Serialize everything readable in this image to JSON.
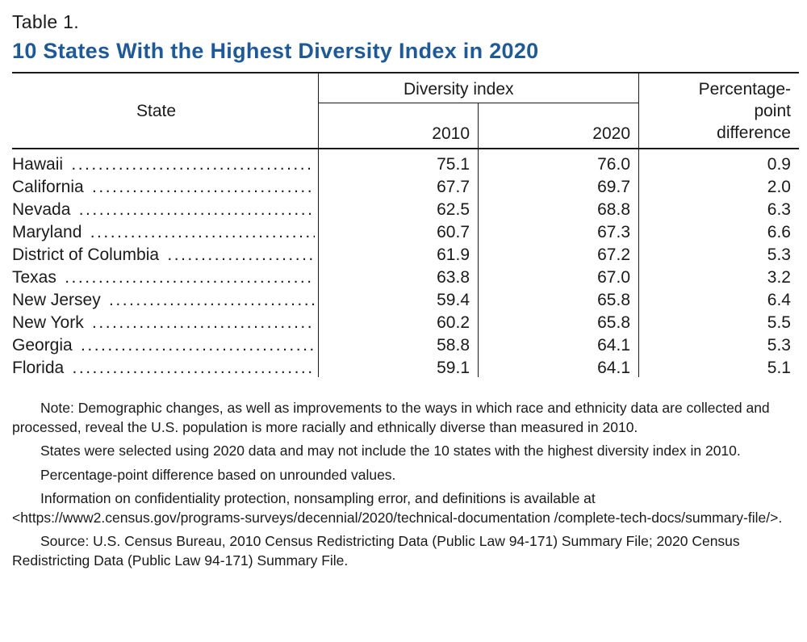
{
  "table": {
    "label": "Table 1.",
    "title": "10 States With the Highest Diversity Index in 2020",
    "headers": {
      "state": "State",
      "diversity_index": "Diversity index",
      "year_2010": "2010",
      "year_2020": "2020",
      "pct_line1": "Percentage-",
      "pct_line2": "point",
      "pct_line3": "difference"
    },
    "rows": [
      {
        "state": "Hawaii",
        "v2010": "75.1",
        "v2020": "76.0",
        "diff": "0.9"
      },
      {
        "state": "California",
        "v2010": "67.7",
        "v2020": "69.7",
        "diff": "2.0"
      },
      {
        "state": "Nevada",
        "v2010": "62.5",
        "v2020": "68.8",
        "diff": "6.3"
      },
      {
        "state": "Maryland",
        "v2010": "60.7",
        "v2020": "67.3",
        "diff": "6.6"
      },
      {
        "state": "District of Columbia",
        "v2010": "61.9",
        "v2020": "67.2",
        "diff": "5.3"
      },
      {
        "state": "Texas",
        "v2010": "63.8",
        "v2020": "67.0",
        "diff": "3.2"
      },
      {
        "state": "New Jersey",
        "v2010": "59.4",
        "v2020": "65.8",
        "diff": "6.4"
      },
      {
        "state": "New York",
        "v2010": "60.2",
        "v2020": "65.8",
        "diff": "5.5"
      },
      {
        "state": "Georgia",
        "v2010": "58.8",
        "v2020": "64.1",
        "diff": "5.3"
      },
      {
        "state": "Florida",
        "v2010": "59.1",
        "v2020": "64.1",
        "diff": "5.1"
      }
    ]
  },
  "notes": [
    "Note: Demographic changes, as well as improvements to the ways in which race and ethnicity data are collected and processed, reveal the U.S. population is more racially and ethnically diverse than measured in 2010.",
    "States were selected using 2020 data and may not include the 10 states with the highest diversity index in 2010.",
    "Percentage-point difference based on unrounded values.",
    "Information on confidentiality protection, nonsampling error, and definitions is available at <https://www2.census.gov/programs-surveys/decennial/2020/technical-documentation /complete-tech-docs/summary-file/>.",
    "Source: U.S. Census Bureau, 2010 Census Redistricting Data (Public Law 94-171) Summary File; 2020 Census Redistricting Data (Public Law 94-171) Summary File."
  ],
  "colors": {
    "title": "#1f5a96",
    "text": "#1a1a1a"
  }
}
